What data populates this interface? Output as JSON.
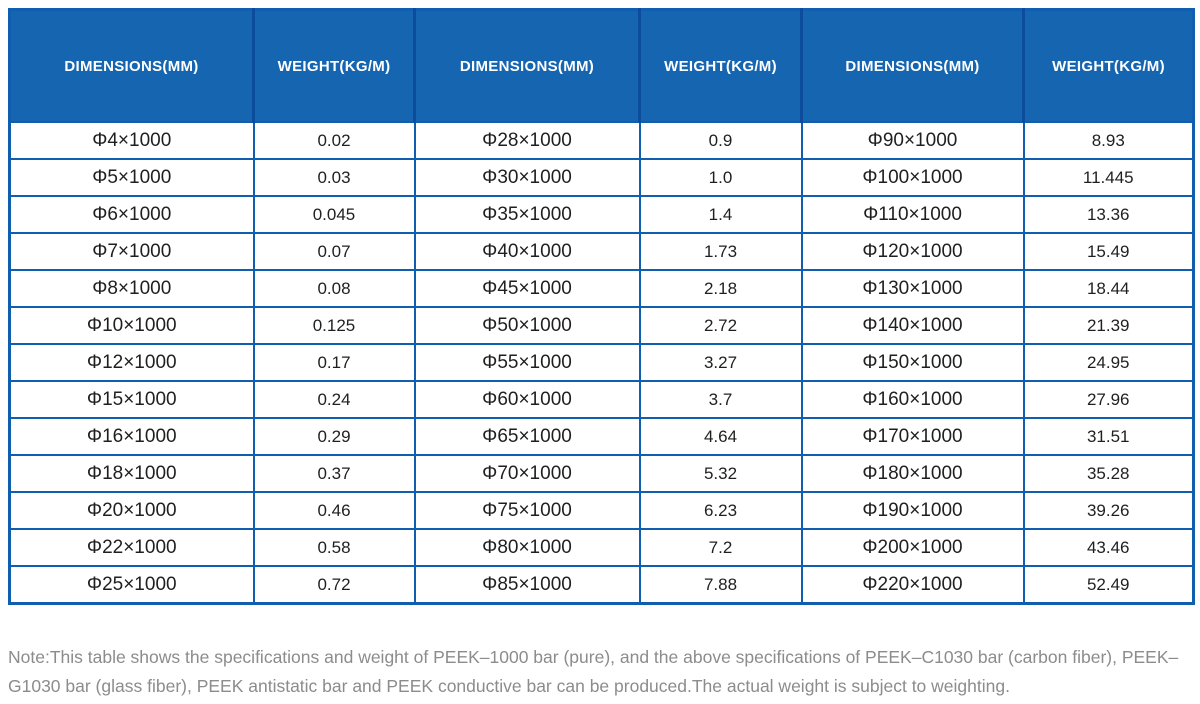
{
  "table": {
    "headers": [
      "DIMENSIONS(MM)",
      "WEIGHT(KG/M)",
      "DIMENSIONS(MM)",
      "WEIGHT(KG/M)",
      "DIMENSIONS(MM)",
      "WEIGHT(KG/M)"
    ],
    "rows": [
      [
        "Φ4×1000",
        "0.02",
        "Φ28×1000",
        "0.9",
        "Φ90×1000",
        "8.93"
      ],
      [
        "Φ5×1000",
        "0.03",
        "Φ30×1000",
        "1.0",
        "Φ100×1000",
        "11.445"
      ],
      [
        "Φ6×1000",
        "0.045",
        "Φ35×1000",
        "1.4",
        "Φ110×1000",
        "13.36"
      ],
      [
        "Φ7×1000",
        "0.07",
        "Φ40×1000",
        "1.73",
        "Φ120×1000",
        "15.49"
      ],
      [
        "Φ8×1000",
        "0.08",
        "Φ45×1000",
        "2.18",
        "Φ130×1000",
        "18.44"
      ],
      [
        "Φ10×1000",
        "0.125",
        "Φ50×1000",
        "2.72",
        "Φ140×1000",
        "21.39"
      ],
      [
        "Φ12×1000",
        "0.17",
        "Φ55×1000",
        "3.27",
        "Φ150×1000",
        "24.95"
      ],
      [
        "Φ15×1000",
        "0.24",
        "Φ60×1000",
        "3.7",
        "Φ160×1000",
        "27.96"
      ],
      [
        "Φ16×1000",
        "0.29",
        "Φ65×1000",
        "4.64",
        "Φ170×1000",
        "31.51"
      ],
      [
        "Φ18×1000",
        "0.37",
        "Φ70×1000",
        "5.32",
        "Φ180×1000",
        "35.28"
      ],
      [
        "Φ20×1000",
        "0.46",
        "Φ75×1000",
        "6.23",
        "Φ190×1000",
        "39.26"
      ],
      [
        "Φ22×1000",
        "0.58",
        "Φ80×1000",
        "7.2",
        "Φ200×1000",
        "43.46"
      ],
      [
        "Φ25×1000",
        "0.72",
        "Φ85×1000",
        "7.88",
        "Φ220×1000",
        "52.49"
      ]
    ]
  },
  "note": {
    "text": "Note:This table shows the specifications and weight of PEEK–1000 bar (pure), and the above specifications of PEEK–C1030 bar (carbon fiber), PEEK–G1030 bar (glass fiber), PEEK antistatic bar and PEEK conductive bar can be produced.The actual weight is subject to weighting."
  },
  "colors": {
    "header_bg": "#1565b0",
    "header_divider": "#0b4d9c",
    "grid_border": "#0f5eb0",
    "cell_text": "#1f1f1f",
    "note_text": "#8c8c8c"
  }
}
